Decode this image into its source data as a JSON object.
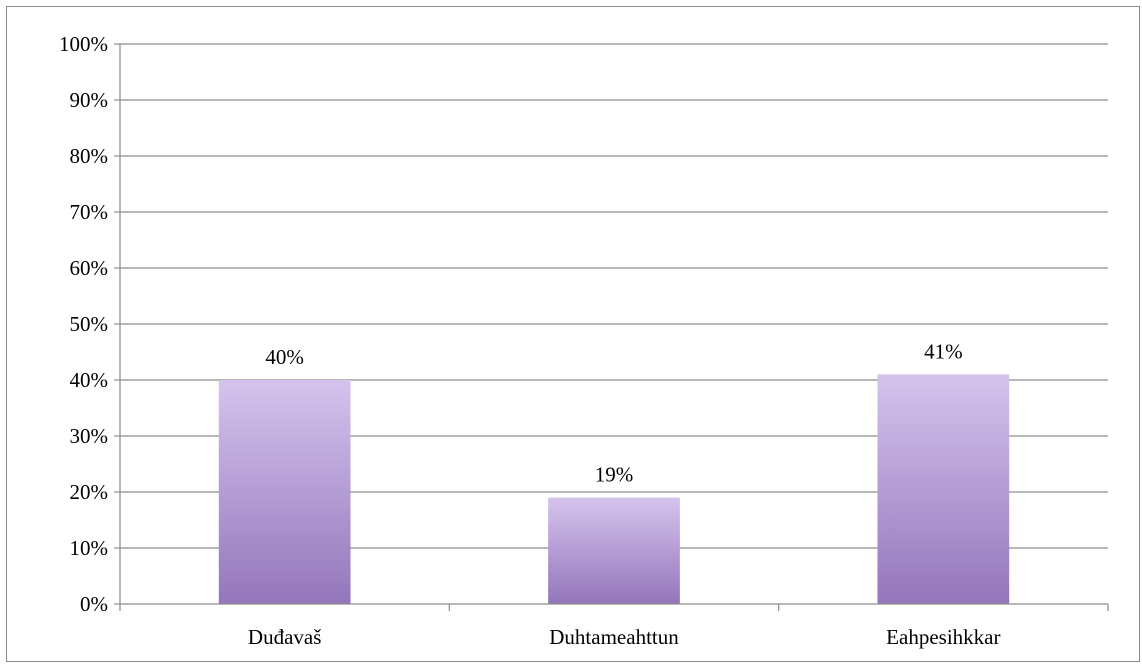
{
  "chart_data": {
    "type": "bar",
    "categories": [
      "Duđavaš",
      "Duhtameahttun",
      "Eahpesihkkar"
    ],
    "values": [
      40,
      19,
      41
    ],
    "data_labels": [
      "40%",
      "19%",
      "41%"
    ],
    "title": "",
    "xlabel": "",
    "ylabel": "",
    "ylim": [
      0,
      100
    ],
    "y_ticks": [
      0,
      10,
      20,
      30,
      40,
      50,
      60,
      70,
      80,
      90,
      100
    ],
    "y_tick_labels": [
      "0%",
      "10%",
      "20%",
      "30%",
      "40%",
      "50%",
      "60%",
      "70%",
      "80%",
      "90%",
      "100%"
    ],
    "grid": true,
    "legend": "none",
    "colors": {
      "bar_top": "#d5c3ed",
      "bar_bottom": "#9476bb",
      "grid": "#8c8c8c",
      "axis": "#8c8c8c",
      "frame": "#8c8c8c"
    }
  }
}
